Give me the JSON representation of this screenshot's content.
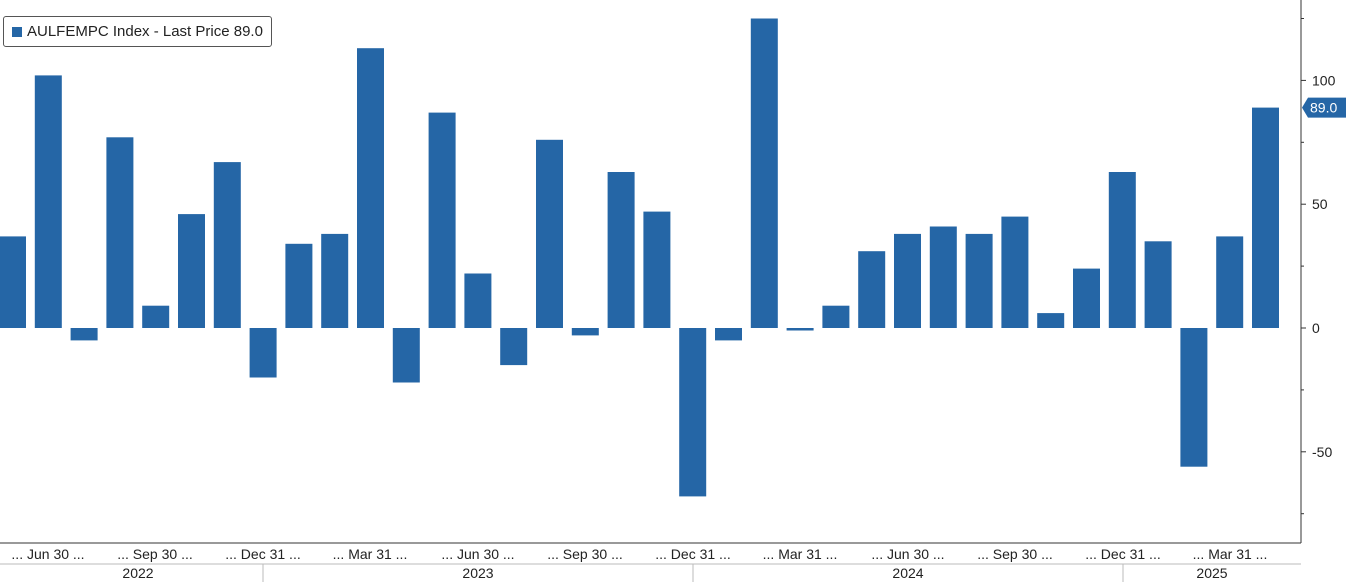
{
  "legend": {
    "label": "AULFEMPC Index - Last Price 89.0",
    "color": "#2566a6"
  },
  "chart_data": {
    "type": "bar",
    "series": [
      {
        "name": "AULFEMPC Index - Last Price 89.0",
        "color": "#2566a6",
        "values": [
          37,
          102,
          -5,
          77,
          9,
          46,
          67,
          -20,
          34,
          38,
          113,
          -22,
          87,
          22,
          -15,
          76,
          -3,
          63,
          47,
          -68,
          -5,
          125,
          -1,
          9,
          31,
          38,
          41,
          38,
          45,
          6,
          24,
          63,
          35,
          -56,
          37,
          89
        ]
      }
    ],
    "x_tick_labels": [
      "... Jun 30 ...",
      "... Sep 30 ...",
      "... Dec 31 ...",
      "... Mar 31 ...",
      "... Jun 30 ...",
      "... Sep 30 ...",
      "... Dec 31 ...",
      "... Mar 31 ...",
      "... Jun 30 ...",
      "... Sep 30 ...",
      "... Dec 31 ...",
      "... Mar 31 ..."
    ],
    "years": [
      "2022",
      "2023",
      "2024",
      "2025"
    ],
    "y_ticks": [
      100,
      50,
      0,
      -50
    ],
    "ylim": [
      -76,
      132
    ],
    "last_price": "89.0",
    "last_value": 89,
    "grid": false,
    "legend_position": "top-left"
  }
}
